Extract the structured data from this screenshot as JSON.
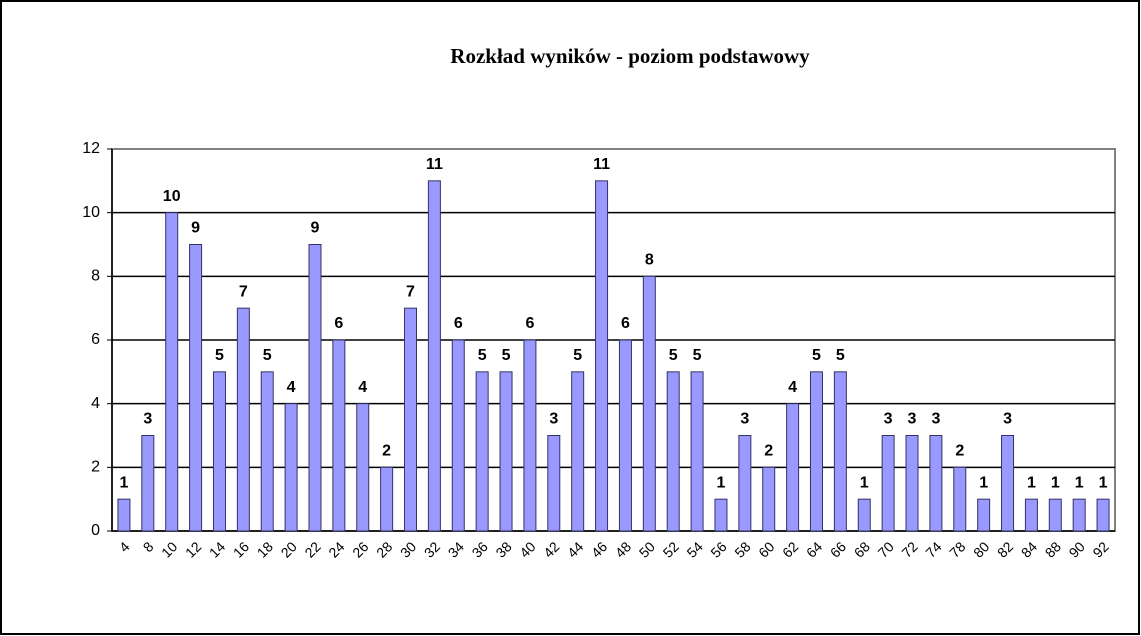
{
  "chart_data": {
    "type": "bar",
    "title": "Rozkład wyników - poziom podstawowy",
    "categories": [
      "4",
      "8",
      "10",
      "12",
      "14",
      "16",
      "18",
      "20",
      "22",
      "24",
      "26",
      "28",
      "30",
      "32",
      "34",
      "36",
      "38",
      "40",
      "42",
      "44",
      "46",
      "48",
      "50",
      "52",
      "54",
      "56",
      "58",
      "60",
      "62",
      "64",
      "66",
      "68",
      "70",
      "72",
      "74",
      "78",
      "80",
      "82",
      "84",
      "88",
      "90",
      "92"
    ],
    "values": [
      1,
      3,
      10,
      9,
      5,
      7,
      5,
      4,
      9,
      6,
      4,
      2,
      7,
      11,
      6,
      5,
      5,
      6,
      3,
      5,
      11,
      6,
      8,
      5,
      5,
      1,
      3,
      2,
      4,
      5,
      5,
      1,
      3,
      3,
      3,
      2,
      1,
      3,
      1,
      1,
      1,
      1
    ],
    "color": "#9999ff",
    "ylim": [
      0,
      12
    ],
    "yticks": [
      0,
      2,
      4,
      6,
      8,
      10,
      12
    ],
    "grid": true
  }
}
